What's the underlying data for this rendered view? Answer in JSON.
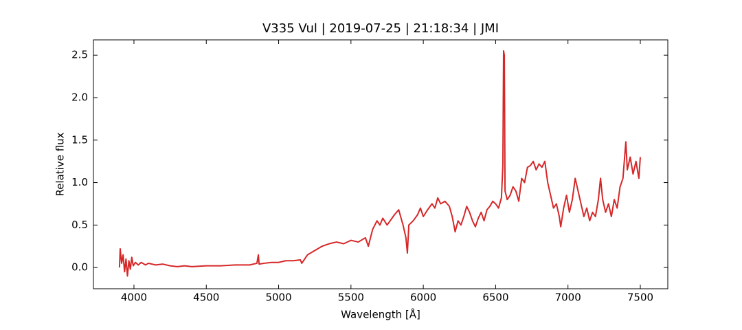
{
  "chart_data": {
    "type": "line",
    "title": "V335 Vul | 2019-07-25 | 21:18:34 | JMI",
    "x_label": "Wavelength [Å]",
    "y_label": "Relative flux",
    "xlim": [
      3720,
      7690
    ],
    "ylim": [
      -0.25,
      2.68
    ],
    "xticks": [
      4000,
      4500,
      5000,
      5500,
      6000,
      6500,
      7000,
      7500
    ],
    "yticks": [
      {
        "value": 0,
        "label": "0.0"
      },
      0.5,
      {
        "value": 1,
        "label": "1.0"
      },
      1.5,
      {
        "value": 2,
        "label": "2.0"
      },
      2.5
    ],
    "x": [
      3900,
      3905,
      3915,
      3925,
      3935,
      3945,
      3955,
      3965,
      3975,
      3985,
      3995,
      4010,
      4030,
      4050,
      4080,
      4100,
      4150,
      4200,
      4250,
      4300,
      4350,
      4400,
      4500,
      4600,
      4700,
      4800,
      4850,
      4860,
      4865,
      4900,
      4950,
      5000,
      5050,
      5100,
      5150,
      5160,
      5200,
      5250,
      5300,
      5350,
      5400,
      5450,
      5500,
      5550,
      5600,
      5620,
      5650,
      5680,
      5700,
      5720,
      5750,
      5800,
      5830,
      5860,
      5880,
      5890,
      5900,
      5930,
      5960,
      5980,
      6000,
      6030,
      6060,
      6080,
      6100,
      6120,
      6150,
      6180,
      6200,
      6220,
      6240,
      6260,
      6280,
      6300,
      6320,
      6340,
      6360,
      6380,
      6400,
      6420,
      6440,
      6460,
      6480,
      6500,
      6520,
      6540,
      6550,
      6555,
      6560,
      6565,
      6580,
      6600,
      6620,
      6640,
      6660,
      6680,
      6700,
      6720,
      6740,
      6760,
      6780,
      6800,
      6820,
      6840,
      6860,
      6880,
      6900,
      6920,
      6940,
      6950,
      6970,
      6990,
      7010,
      7030,
      7050,
      7070,
      7090,
      7110,
      7130,
      7150,
      7170,
      7190,
      7210,
      7225,
      7240,
      7260,
      7280,
      7300,
      7320,
      7340,
      7360,
      7380,
      7400,
      7410,
      7430,
      7450,
      7470,
      7490,
      7500
    ],
    "series": [
      {
        "name": "V335 Vul",
        "color": "#d62728",
        "values": [
          0.0,
          0.22,
          0.05,
          0.15,
          -0.05,
          0.1,
          -0.1,
          0.08,
          -0.02,
          0.12,
          0.02,
          0.06,
          0.03,
          0.06,
          0.03,
          0.05,
          0.03,
          0.04,
          0.02,
          0.01,
          0.02,
          0.01,
          0.02,
          0.02,
          0.03,
          0.03,
          0.05,
          0.15,
          0.04,
          0.05,
          0.06,
          0.06,
          0.08,
          0.08,
          0.09,
          0.05,
          0.15,
          0.2,
          0.25,
          0.28,
          0.3,
          0.28,
          0.32,
          0.3,
          0.35,
          0.25,
          0.45,
          0.55,
          0.5,
          0.58,
          0.5,
          0.62,
          0.68,
          0.5,
          0.35,
          0.17,
          0.5,
          0.55,
          0.62,
          0.7,
          0.6,
          0.68,
          0.75,
          0.7,
          0.82,
          0.75,
          0.78,
          0.72,
          0.6,
          0.42,
          0.55,
          0.5,
          0.6,
          0.72,
          0.65,
          0.55,
          0.48,
          0.58,
          0.65,
          0.55,
          0.68,
          0.72,
          0.78,
          0.75,
          0.7,
          0.82,
          1.2,
          2.55,
          2.5,
          0.9,
          0.8,
          0.85,
          0.95,
          0.9,
          0.78,
          1.05,
          1.0,
          1.18,
          1.2,
          1.25,
          1.15,
          1.22,
          1.18,
          1.25,
          1.0,
          0.85,
          0.7,
          0.75,
          0.6,
          0.48,
          0.7,
          0.85,
          0.65,
          0.8,
          1.05,
          0.9,
          0.75,
          0.6,
          0.7,
          0.55,
          0.65,
          0.6,
          0.8,
          1.05,
          0.8,
          0.65,
          0.75,
          0.6,
          0.8,
          0.7,
          0.95,
          1.05,
          1.48,
          1.15,
          1.3,
          1.1,
          1.25,
          1.05,
          1.3
        ]
      }
    ]
  }
}
